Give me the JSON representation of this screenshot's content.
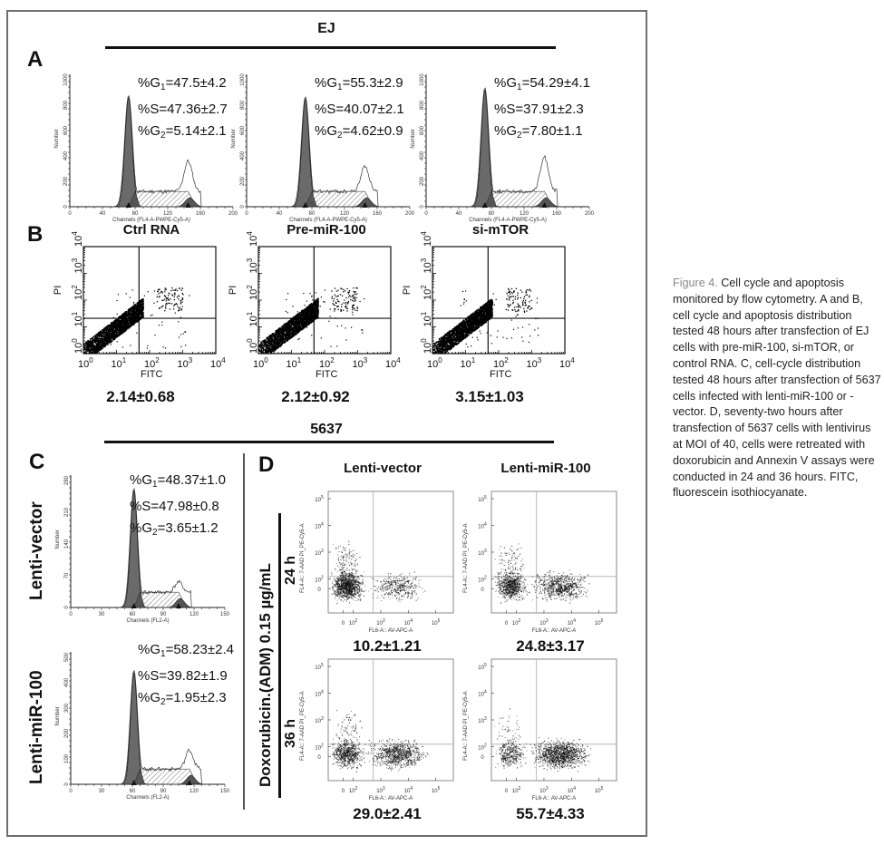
{
  "figure": {
    "group_ej": "EJ",
    "group_5637": "5637",
    "panels": {
      "a": "A",
      "b": "B",
      "c": "C",
      "d": "D"
    }
  },
  "panel_a": {
    "x_axis_label": "Channels (FL4-A-PWPE-Cy5-A)",
    "y_axis_label": "Number",
    "x_ticks": [
      "0",
      "40",
      "80",
      "120",
      "160",
      "200"
    ],
    "y_ticks": [
      "0",
      "200",
      "400",
      "600",
      "800",
      "1000"
    ],
    "plots": [
      {
        "g1": "%G",
        "g1_val": "=47.5±4.2",
        "s": "%S=47.36±2.7",
        "g2": "%G",
        "g2_val": "=5.14±2.1",
        "g1_peak": 0.86,
        "g2_peak": 0.24
      },
      {
        "g1": "%G",
        "g1_val": "=55.3±2.9",
        "s": "%S=40.07±2.1",
        "g2": "%G",
        "g2_val": "=4.62±0.9",
        "g1_peak": 0.85,
        "g2_peak": 0.2
      },
      {
        "g1": "%G",
        "g1_val": "=54.29±4.1",
        "s": "%S=37.91±2.3",
        "g2": "%G",
        "g2_val": "=7.80±1.1",
        "g1_peak": 0.92,
        "g2_peak": 0.27
      }
    ]
  },
  "panel_b": {
    "x_axis_label": "FITC",
    "y_axis_label": "PI",
    "ticks": [
      "10",
      "10",
      "10",
      "10",
      "10"
    ],
    "exponents": [
      "0",
      "1",
      "2",
      "3",
      "4"
    ],
    "plots": [
      {
        "title": "Ctrl RNA",
        "value": "2.14±0.68"
      },
      {
        "title": "Pre-miR-100",
        "value": "2.12±0.92"
      },
      {
        "title": "si-mTOR",
        "value": "3.15±1.03"
      }
    ]
  },
  "panel_c": {
    "x_axis_label": "Channels (FL2-A)",
    "y_axis_label": "Number",
    "x_ticks": [
      "0",
      "30",
      "60",
      "90",
      "120",
      "150"
    ],
    "plots": [
      {
        "side_label": "Lenti-vector",
        "g1": "%G",
        "g1_val": "=48.37±1.0",
        "s": "%S=47.98±0.8",
        "g2": "%G",
        "g2_val": "=3.65±1.2",
        "y_ticks": [
          "0",
          "70",
          "140",
          "210",
          "280"
        ],
        "g1_peak": 0.92,
        "g2_peak": 0.08
      },
      {
        "side_label": "Lenti-miR-100",
        "g1": "%G",
        "g1_val": "=58.23±2.4",
        "s": "%S=39.82±1.9",
        "g2": "%G",
        "g2_val": "=1.95±2.3",
        "y_ticks": [
          "0",
          "100",
          "200",
          "300",
          "400",
          "500"
        ],
        "g1_peak": 0.88,
        "g2_peak": 0.15
      }
    ]
  },
  "panel_d": {
    "treatment_label": "Doxorubicin.(ADM) 0.15 µg/mL",
    "col_titles": [
      "Lenti-vector",
      "Lenti-miR-100"
    ],
    "row_labels": [
      "24 h",
      "36 h"
    ],
    "x_axis_label": "FL6-A:: AV-APC-A",
    "y_axis_label": "FL4-A:: 7-AAD PI_PE-Cy5-A",
    "x_ticks": [
      "0",
      "10",
      "10",
      "10",
      "10"
    ],
    "x_exps": [
      "",
      "2",
      "3",
      "4",
      "5"
    ],
    "y_ticks": [
      "0",
      "10",
      "10",
      "10",
      "10"
    ],
    "y_exps": [
      "",
      "2",
      "3",
      "4",
      "5"
    ],
    "values": [
      "10.2±1.21",
      "24.8±3.17",
      "29.0±2.41",
      "55.7±4.33"
    ],
    "shift": [
      0.25,
      0.45,
      0.55,
      0.75
    ]
  },
  "caption": {
    "figure_label": "Figure 4.",
    "text": " Cell cycle and apoptosis monitored by flow cytometry. A and B, cell cycle and apoptosis distribution tested 48 hours after transfection of EJ cells with pre-miR-100, si-mTOR, or control RNA. C, cell-cycle distribution tested 48 hours after transfection of 5637 cells infected with lenti-miR-100 or -vector. D, seventy-two hours after transfection of 5637 cells with lentivirus at MOI of 40, cells were retreated with doxorubicin and Annexin V assays were conducted in 24 and 36 hours. FITC, fluorescein isothiocyanate."
  }
}
